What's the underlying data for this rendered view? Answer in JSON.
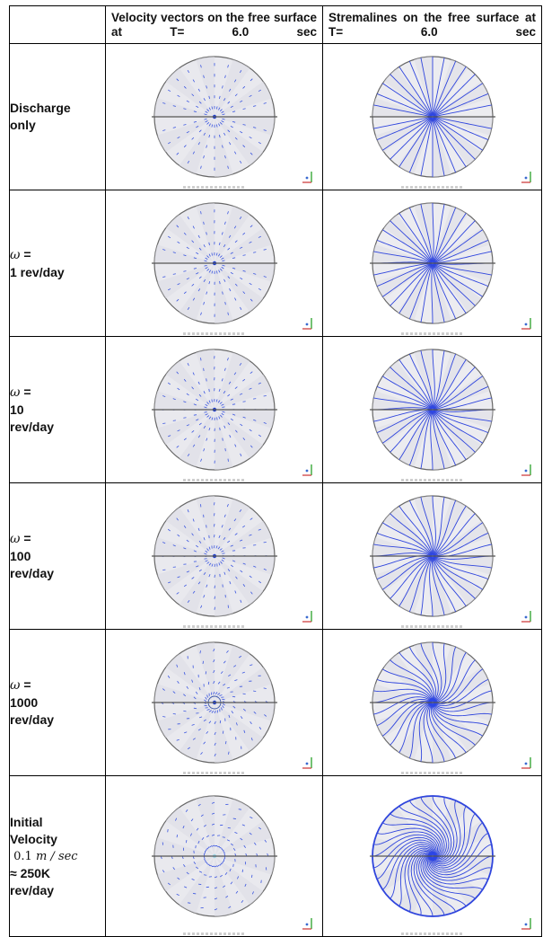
{
  "header": {
    "corner": "",
    "col1": "Velocity vectors on the free surface at T= 6.0 sec",
    "col2": "Stremalines on the free surface at T= 6.0 sec"
  },
  "rows": [
    {
      "label_lines": [
        "Discharge",
        "only"
      ],
      "twist": 0.0
    },
    {
      "omega": "ω",
      "label_lines": [
        "=",
        "1 rev/day"
      ],
      "twist": 0.05
    },
    {
      "omega": "ω",
      "label_lines": [
        "=",
        "10",
        "rev/day"
      ],
      "twist": 0.1
    },
    {
      "omega": "ω",
      "label_lines": [
        "=",
        "100",
        "rev/day"
      ],
      "twist": 0.15
    },
    {
      "omega": "ω",
      "label_lines": [
        "=",
        "1000",
        "rev/day"
      ],
      "twist": 0.45
    },
    {
      "label_lines": [
        "Initial",
        "Velocity"
      ],
      "speed_value": "0.1",
      "speed_unit": "m / sec",
      "approx_line": "≈ 250K",
      "last_line": "rev/day",
      "twist": 1.3
    }
  ],
  "colors": {
    "vectors": "#3a55e0",
    "streamlines": "#2f45dd",
    "disc_fill": "#e9e9ee",
    "rim": "#666666"
  }
}
